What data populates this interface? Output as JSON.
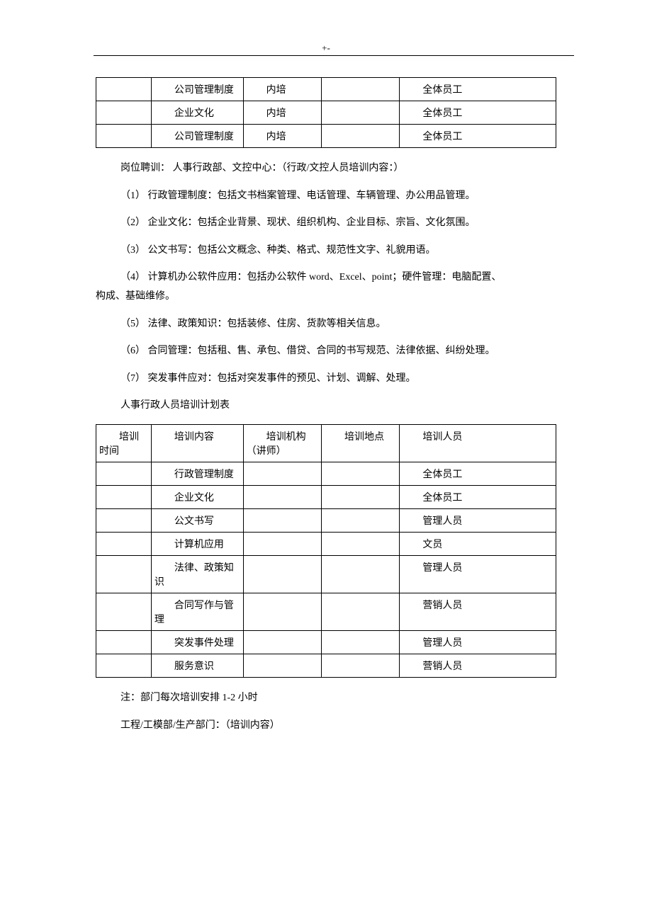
{
  "header_marker": "+-",
  "table1": {
    "rows": [
      {
        "time": "",
        "content": "公司管理制度",
        "org": "内培",
        "loc": "",
        "person": "全体员工"
      },
      {
        "time": "",
        "content": "企业文化",
        "org": "内培",
        "loc": "",
        "person": "全体员工"
      },
      {
        "time": "",
        "content": "公司管理制度",
        "org": "内培",
        "loc": "",
        "person": "全体员工"
      }
    ]
  },
  "section1": {
    "title": "岗位聘训： 人事行政部、文控中心：（行政/文控人员培训内容：）",
    "items": [
      "（1） 行政管理制度：包括文书档案管理、电话管理、车辆管理、办公用品管理。",
      "（2） 企业文化：包括企业背景、现状、组织机构、企业目标、宗旨、文化氛围。",
      "（3） 公文书写：包括公文概念、种类、格式、规范性文字、礼貌用语。"
    ],
    "item4_part1": "（4） 计算机办公软件应用：包括办公软件 word、Excel、point；硬件管理：电脑配置、",
    "item4_part2": "构成、基础维修。",
    "items2": [
      "（5） 法律、政策知识：包括装修、住房、货款等相关信息。",
      "（6） 合同管理：包括租、售、承包、借贷、合同的书写规范、法律依据、纠纷处理。",
      "（7） 突发事件应对：包括对突发事件的预见、计划、调解、处理。"
    ]
  },
  "table2": {
    "title": "人事行政人员培训计划表",
    "headers": {
      "time": "培训时间",
      "content": "培训内容",
      "org": "培训机构（讲师）",
      "loc": "培训地点",
      "person": "培训人员"
    },
    "rows": [
      {
        "time": "",
        "content": "行政管理制度",
        "org": "",
        "loc": "",
        "person": "全体员工"
      },
      {
        "time": "",
        "content": "企业文化",
        "org": "",
        "loc": "",
        "person": "全体员工"
      },
      {
        "time": "",
        "content": "公文书写",
        "org": "",
        "loc": "",
        "person": "管理人员"
      },
      {
        "time": "",
        "content": "计算机应用",
        "org": "",
        "loc": "",
        "person": "文员"
      },
      {
        "time": "",
        "content": "法律、政策知识",
        "org": "",
        "loc": "",
        "person": "管理人员"
      },
      {
        "time": "",
        "content": "合同写作与管理",
        "org": "",
        "loc": "",
        "person": "营销人员"
      },
      {
        "time": "",
        "content": "突发事件处理",
        "org": "",
        "loc": "",
        "person": "管理人员"
      },
      {
        "time": "",
        "content": "服务意识",
        "org": "",
        "loc": "",
        "person": "营销人员"
      }
    ]
  },
  "footer": {
    "note": "注：部门每次培训安排 1-2 小时",
    "next": "工程/工模部/生产部门：（培训内容）"
  }
}
